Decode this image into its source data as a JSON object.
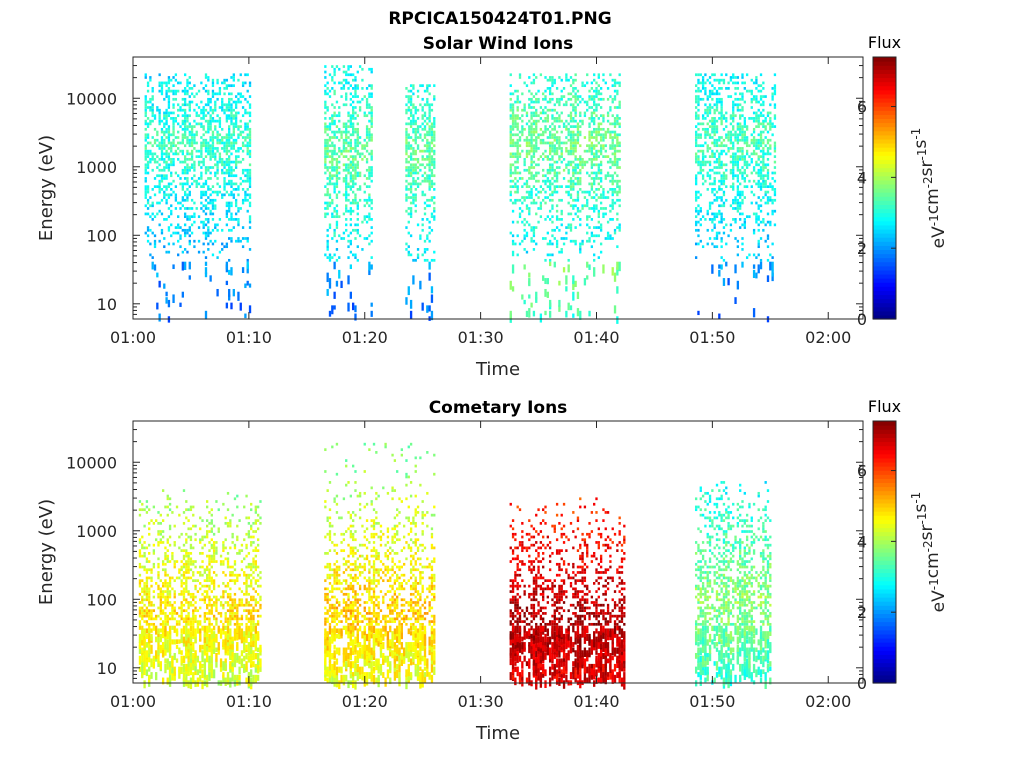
{
  "figure": {
    "title": "RPCICA150424T01.PNG",
    "colors": {
      "colormap": "jet",
      "axis": "#262626",
      "background": "#ffffff"
    }
  },
  "chart_data": [
    {
      "type": "heatmap",
      "title": "Solar Wind Ions",
      "xlabel": "Time",
      "ylabel": "Energy (eV)",
      "x_tick_labels": [
        "01:00",
        "01:10",
        "01:20",
        "01:30",
        "01:40",
        "01:50",
        "02:00"
      ],
      "x_tick_minutes": [
        0,
        10,
        20,
        30,
        40,
        50,
        60
      ],
      "xlim_minutes": [
        0,
        63
      ],
      "y_scale": "log",
      "ylim": [
        6,
        40000
      ],
      "y_tick_labels": [
        "10",
        "100",
        "1000",
        "10000"
      ],
      "y_tick_values": [
        10,
        100,
        1000,
        10000
      ],
      "colorbar": {
        "title": "Flux",
        "label": "eV-1cm-2sr-1s-1",
        "range": [
          0,
          7.4
        ],
        "tick_labels": [
          "0",
          "2",
          "4",
          "6"
        ],
        "tick_values": [
          0,
          2,
          4,
          6
        ]
      },
      "bursts": [
        {
          "start_min": 1.0,
          "end_min": 10.0,
          "e_low": 6,
          "e_high": 22000,
          "peak_energy": 2000,
          "flux_high": 3.2,
          "flux_low_energy": 3.0
        },
        {
          "start_min": 16.5,
          "end_min": 20.5,
          "e_low": 6,
          "e_high": 30000,
          "peak_energy": 1500,
          "flux_high": 3.5,
          "flux_low_energy": 3.0
        },
        {
          "start_min": 23.5,
          "end_min": 26.0,
          "e_low": 6,
          "e_high": 15000,
          "peak_energy": 1500,
          "flux_high": 3.5,
          "flux_low_energy": 3.0
        },
        {
          "start_min": 32.5,
          "end_min": 42.0,
          "e_low": 6,
          "e_high": 22000,
          "peak_energy": 2000,
          "flux_high": 3.6,
          "flux_low_energy": 4.6
        },
        {
          "start_min": 48.5,
          "end_min": 55.5,
          "e_low": 6,
          "e_high": 22000,
          "peak_energy": 2000,
          "flux_high": 3.3,
          "flux_low_energy": 3.0
        }
      ]
    },
    {
      "type": "heatmap",
      "title": "Cometary Ions",
      "xlabel": "Time",
      "ylabel": "Energy (eV)",
      "x_tick_labels": [
        "01:00",
        "01:10",
        "01:20",
        "01:30",
        "01:40",
        "01:50",
        "02:00"
      ],
      "x_tick_minutes": [
        0,
        10,
        20,
        30,
        40,
        50,
        60
      ],
      "xlim_minutes": [
        0,
        63
      ],
      "y_scale": "log",
      "ylim": [
        6,
        40000
      ],
      "y_tick_labels": [
        "10",
        "100",
        "1000",
        "10000"
      ],
      "y_tick_values": [
        10,
        100,
        1000,
        10000
      ],
      "colorbar": {
        "title": "Flux",
        "label": "eV-1cm-2sr-1s-1",
        "range": [
          0,
          7.4
        ],
        "tick_labels": [
          "0",
          "2",
          "4",
          "6"
        ],
        "tick_values": [
          0,
          2,
          4,
          6
        ]
      },
      "bursts": [
        {
          "start_min": 0.5,
          "end_min": 11.0,
          "e_low": 6,
          "e_high": 4000,
          "peak_energy": 60,
          "flux_high": 4.8,
          "flux_low_energy": 4.8
        },
        {
          "start_min": 16.5,
          "end_min": 26.0,
          "e_low": 6,
          "e_high": 18000,
          "peak_energy": 60,
          "flux_high": 5.0,
          "flux_low_energy": 5.0
        },
        {
          "start_min": 32.5,
          "end_min": 42.5,
          "e_low": 6,
          "e_high": 3000,
          "peak_energy": 30,
          "flux_high": 7.2,
          "flux_low_energy": 7.0
        },
        {
          "start_min": 48.5,
          "end_min": 55.0,
          "e_low": 6,
          "e_high": 5000,
          "peak_energy": 100,
          "flux_high": 3.8,
          "flux_low_energy": 3.8
        }
      ]
    }
  ]
}
